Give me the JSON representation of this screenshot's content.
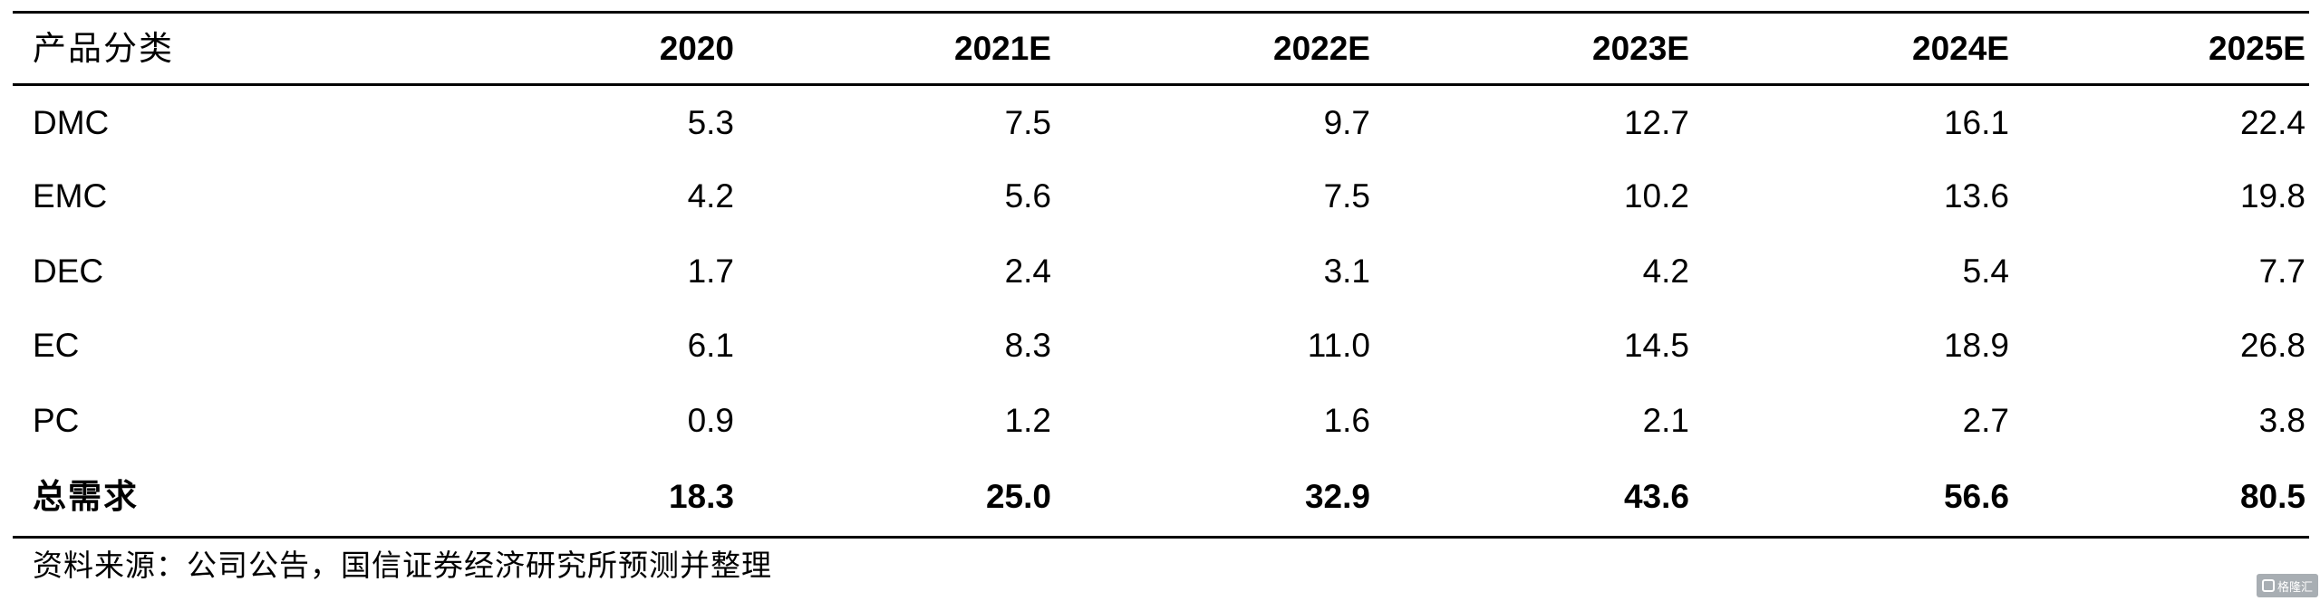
{
  "table": {
    "header": [
      "产品分类",
      "2020",
      "2021E",
      "2022E",
      "2023E",
      "2024E",
      "2025E"
    ],
    "rows": [
      [
        "DMC",
        "5.3",
        "7.5",
        "9.7",
        "12.7",
        "16.1",
        "22.4"
      ],
      [
        "EMC",
        "4.2",
        "5.6",
        "7.5",
        "10.2",
        "13.6",
        "19.8"
      ],
      [
        "DEC",
        "1.7",
        "2.4",
        "3.1",
        "4.2",
        "5.4",
        "7.7"
      ],
      [
        "EC",
        "6.1",
        "8.3",
        "11.0",
        "14.5",
        "18.9",
        "26.8"
      ],
      [
        "PC",
        "0.9",
        "1.2",
        "1.6",
        "2.1",
        "2.7",
        "3.8"
      ]
    ],
    "total": [
      "总需求",
      "18.3",
      "25.0",
      "32.9",
      "43.6",
      "56.6",
      "80.5"
    ]
  },
  "source": "资料来源：公司公告，国信证券经济研究所预测并整理",
  "watermark": {
    "text": "格隆汇",
    "icon": "gelonghui-logo-icon"
  }
}
